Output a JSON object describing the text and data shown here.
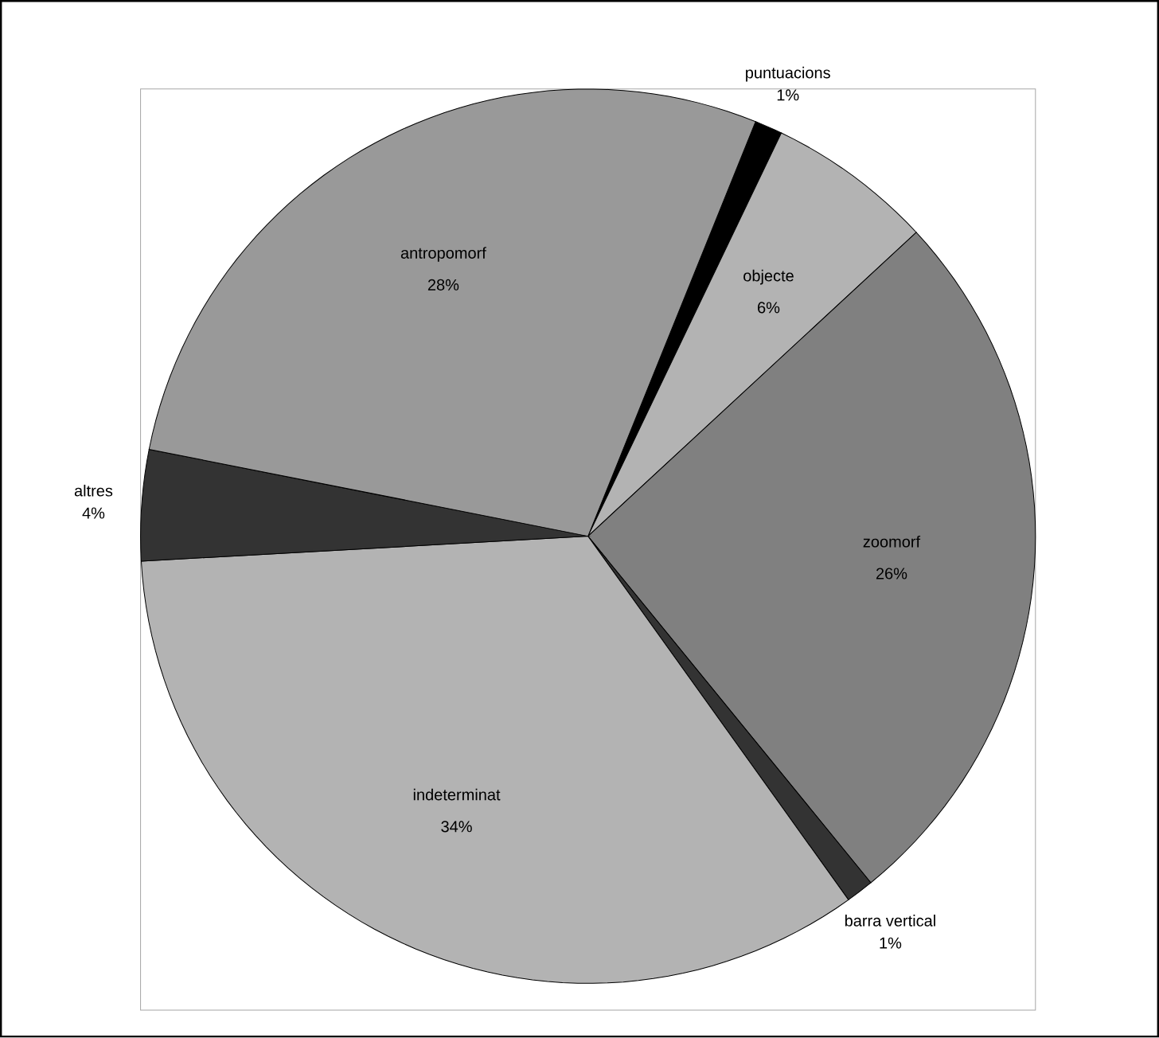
{
  "chart_data": {
    "type": "pie",
    "categories": [
      "puntuacions",
      "objecte",
      "zoomorf",
      "barra vertical",
      "indeterminat",
      "altres",
      "antropomorf"
    ],
    "values": [
      1,
      6,
      26,
      1,
      34,
      4,
      28
    ],
    "value_labels": [
      "1%",
      "6%",
      "26%",
      "1%",
      "34%",
      "4%",
      "28%"
    ],
    "colors": [
      "#000000",
      "#b3b3b3",
      "#808080",
      "#333333",
      "#b3b3b3",
      "#333333",
      "#999999"
    ]
  }
}
